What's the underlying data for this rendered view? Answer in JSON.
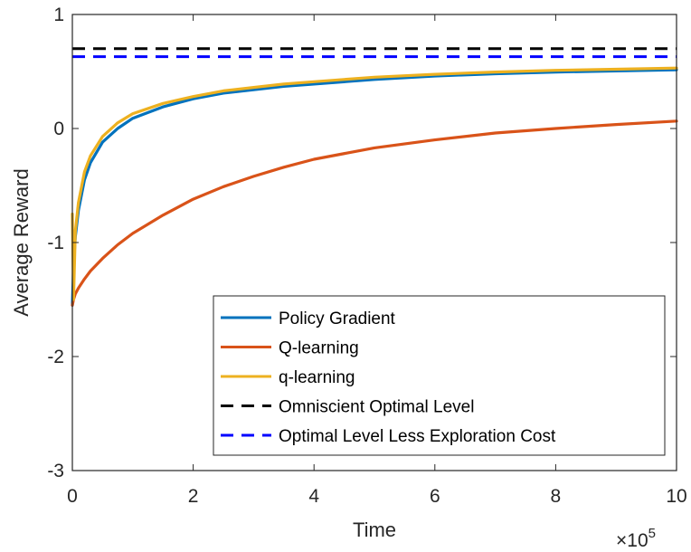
{
  "chart_data": {
    "type": "line",
    "xlabel": "Time",
    "ylabel": "Average Reward",
    "x_exponent_label": "×10",
    "x_exponent_power": "5",
    "xlim": [
      0,
      10
    ],
    "ylim": [
      -3,
      1
    ],
    "x_ticks": [
      0,
      2,
      4,
      6,
      8,
      10
    ],
    "x_tick_labels": [
      "0",
      "2",
      "4",
      "6",
      "8",
      "10"
    ],
    "y_ticks": [
      -3,
      -2,
      -1,
      0,
      1
    ],
    "y_tick_labels": [
      "-3",
      "-2",
      "-1",
      "0",
      "1"
    ],
    "grid": false,
    "legend_position": "bottom-right",
    "series": [
      {
        "name": "Policy Gradient",
        "color": "#0072BD",
        "style": "solid",
        "x": [
          0,
          0.02,
          0.05,
          0.1,
          0.2,
          0.3,
          0.5,
          0.75,
          1,
          1.5,
          2,
          2.5,
          3,
          3.5,
          4,
          5,
          6,
          7,
          8,
          9,
          10
        ],
        "y": [
          -1.55,
          -1.2,
          -0.95,
          -0.72,
          -0.45,
          -0.3,
          -0.12,
          0.0,
          0.09,
          0.19,
          0.26,
          0.31,
          0.34,
          0.37,
          0.39,
          0.43,
          0.46,
          0.48,
          0.495,
          0.505,
          0.515
        ]
      },
      {
        "name": "Q-learning",
        "color": "#D95319",
        "style": "solid",
        "x": [
          0,
          0.02,
          0.05,
          0.1,
          0.2,
          0.3,
          0.5,
          0.75,
          1,
          1.5,
          2,
          2.5,
          3,
          3.5,
          4,
          5,
          6,
          7,
          8,
          9,
          10
        ],
        "y": [
          -1.55,
          -1.5,
          -1.45,
          -1.4,
          -1.32,
          -1.25,
          -1.14,
          -1.02,
          -0.92,
          -0.76,
          -0.62,
          -0.51,
          -0.42,
          -0.34,
          -0.27,
          -0.17,
          -0.1,
          -0.04,
          0.0,
          0.035,
          0.065
        ]
      },
      {
        "name": "q-learning",
        "color": "#EDB120",
        "style": "solid",
        "x": [
          0,
          0.02,
          0.05,
          0.1,
          0.2,
          0.3,
          0.5,
          0.75,
          1,
          1.5,
          2,
          2.5,
          3,
          3.5,
          4,
          5,
          6,
          7,
          8,
          9,
          10
        ],
        "y": [
          -0.75,
          -1.5,
          -0.9,
          -0.65,
          -0.38,
          -0.24,
          -0.07,
          0.05,
          0.13,
          0.22,
          0.28,
          0.33,
          0.36,
          0.39,
          0.41,
          0.45,
          0.475,
          0.495,
          0.51,
          0.52,
          0.53
        ]
      },
      {
        "name": "Omniscient Optimal Level",
        "color": "#000000",
        "style": "dashed",
        "x": [
          0,
          10
        ],
        "y": [
          0.7,
          0.7
        ]
      },
      {
        "name": "Optimal Level Less Exploration Cost",
        "color": "#0000FF",
        "style": "dashed",
        "x": [
          0,
          10
        ],
        "y": [
          0.63,
          0.63
        ]
      }
    ]
  }
}
